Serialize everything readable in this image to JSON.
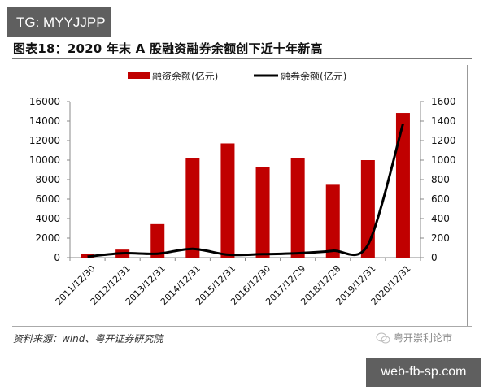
{
  "watermark_top": "TG: MYYJJPP",
  "watermark_bottom": "web-fb-sp.com",
  "title": "图表18：2020 年末 A 股融资融券余额创下近十年新高",
  "source": "资料来源：wind、粤开证券研究院",
  "wechat_label": "粤开崇利论市",
  "colors": {
    "bar": "#c00000",
    "line": "#000000",
    "axis": "#888888"
  },
  "chart_data": {
    "type": "bar+line",
    "title": "2020 年末 A 股融资融券余额创下近十年新高",
    "categories": [
      "2011/12/30",
      "2012/12/31",
      "2013/12/31",
      "2014/12/31",
      "2015/12/31",
      "2016/12/30",
      "2017/12/29",
      "2018/12/28",
      "2019/12/31",
      "2020/12/31"
    ],
    "series": [
      {
        "name": "融资余额(亿元)",
        "type": "bar",
        "axis": "left",
        "color": "#c00000",
        "values": [
          380,
          820,
          3430,
          10170,
          11710,
          9320,
          10180,
          7470,
          10000,
          14830
        ]
      },
      {
        "name": "融券余额(亿元)",
        "type": "line",
        "axis": "right",
        "color": "#000000",
        "values": [
          10,
          45,
          40,
          90,
          30,
          35,
          45,
          70,
          130,
          1370
        ]
      }
    ],
    "left_axis": {
      "ylim": [
        0,
        16000
      ],
      "ticks": [
        "0",
        "2000",
        "4000",
        "6000",
        "8000",
        "10000",
        "12000",
        "14000",
        "16000"
      ]
    },
    "right_axis": {
      "ylim": [
        0,
        1600
      ],
      "ticks": [
        "0",
        "200",
        "400",
        "600",
        "800",
        "1000",
        "1200",
        "1400",
        "1600"
      ]
    },
    "legend": {
      "position": "top",
      "entries": [
        "融资余额(亿元)",
        "融券余额(亿元)"
      ]
    },
    "grid": false
  }
}
